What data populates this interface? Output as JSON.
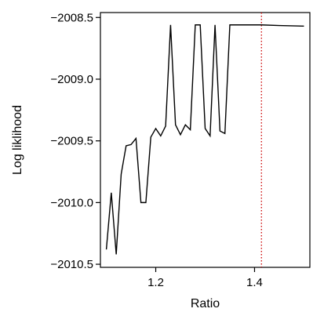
{
  "chart_data": {
    "type": "line",
    "title": "",
    "xlabel": "Ratio",
    "ylabel": "Log liklihood",
    "xlim": [
      1.088,
      1.512
    ],
    "ylim": [
      -2010.525,
      -2008.46
    ],
    "x_ticks": [
      {
        "value": 1.2,
        "label": "1.2"
      },
      {
        "value": 1.4,
        "label": "1.4"
      }
    ],
    "y_ticks": [
      {
        "value": -2008.5,
        "label": "−2008.5"
      },
      {
        "value": -2009.0,
        "label": "−2009.0"
      },
      {
        "value": -2009.5,
        "label": "−2009.5"
      },
      {
        "value": -2010.0,
        "label": "−2010.0"
      },
      {
        "value": -2010.5,
        "label": "−2010.5"
      }
    ],
    "grid": false,
    "series": [
      {
        "color": "#000000",
        "x": [
          1.1,
          1.11,
          1.12,
          1.13,
          1.14,
          1.15,
          1.16,
          1.17,
          1.18,
          1.19,
          1.2,
          1.21,
          1.22,
          1.23,
          1.24,
          1.25,
          1.26,
          1.27,
          1.28,
          1.29,
          1.3,
          1.31,
          1.32,
          1.33,
          1.34,
          1.35,
          1.36,
          1.37,
          1.38,
          1.39,
          1.4,
          1.414,
          1.45,
          1.5
        ],
        "y": [
          -2010.38,
          -2009.92,
          -2010.42,
          -2009.77,
          -2009.54,
          -2009.53,
          -2009.48,
          -2010.0,
          -2010.0,
          -2009.47,
          -2009.4,
          -2009.46,
          -2009.38,
          -2008.56,
          -2009.37,
          -2009.45,
          -2009.37,
          -2009.41,
          -2008.56,
          -2008.56,
          -2009.4,
          -2009.46,
          -2008.56,
          -2009.42,
          -2009.44,
          -2008.56,
          -2008.56,
          -2008.56,
          -2008.56,
          -2008.56,
          -2008.56,
          -2008.56,
          -2008.565,
          -2008.57
        ]
      }
    ],
    "reference_lines": [
      {
        "orientation": "vertical",
        "x": 1.414,
        "color": "#cc0000",
        "style": "dotted"
      }
    ]
  }
}
